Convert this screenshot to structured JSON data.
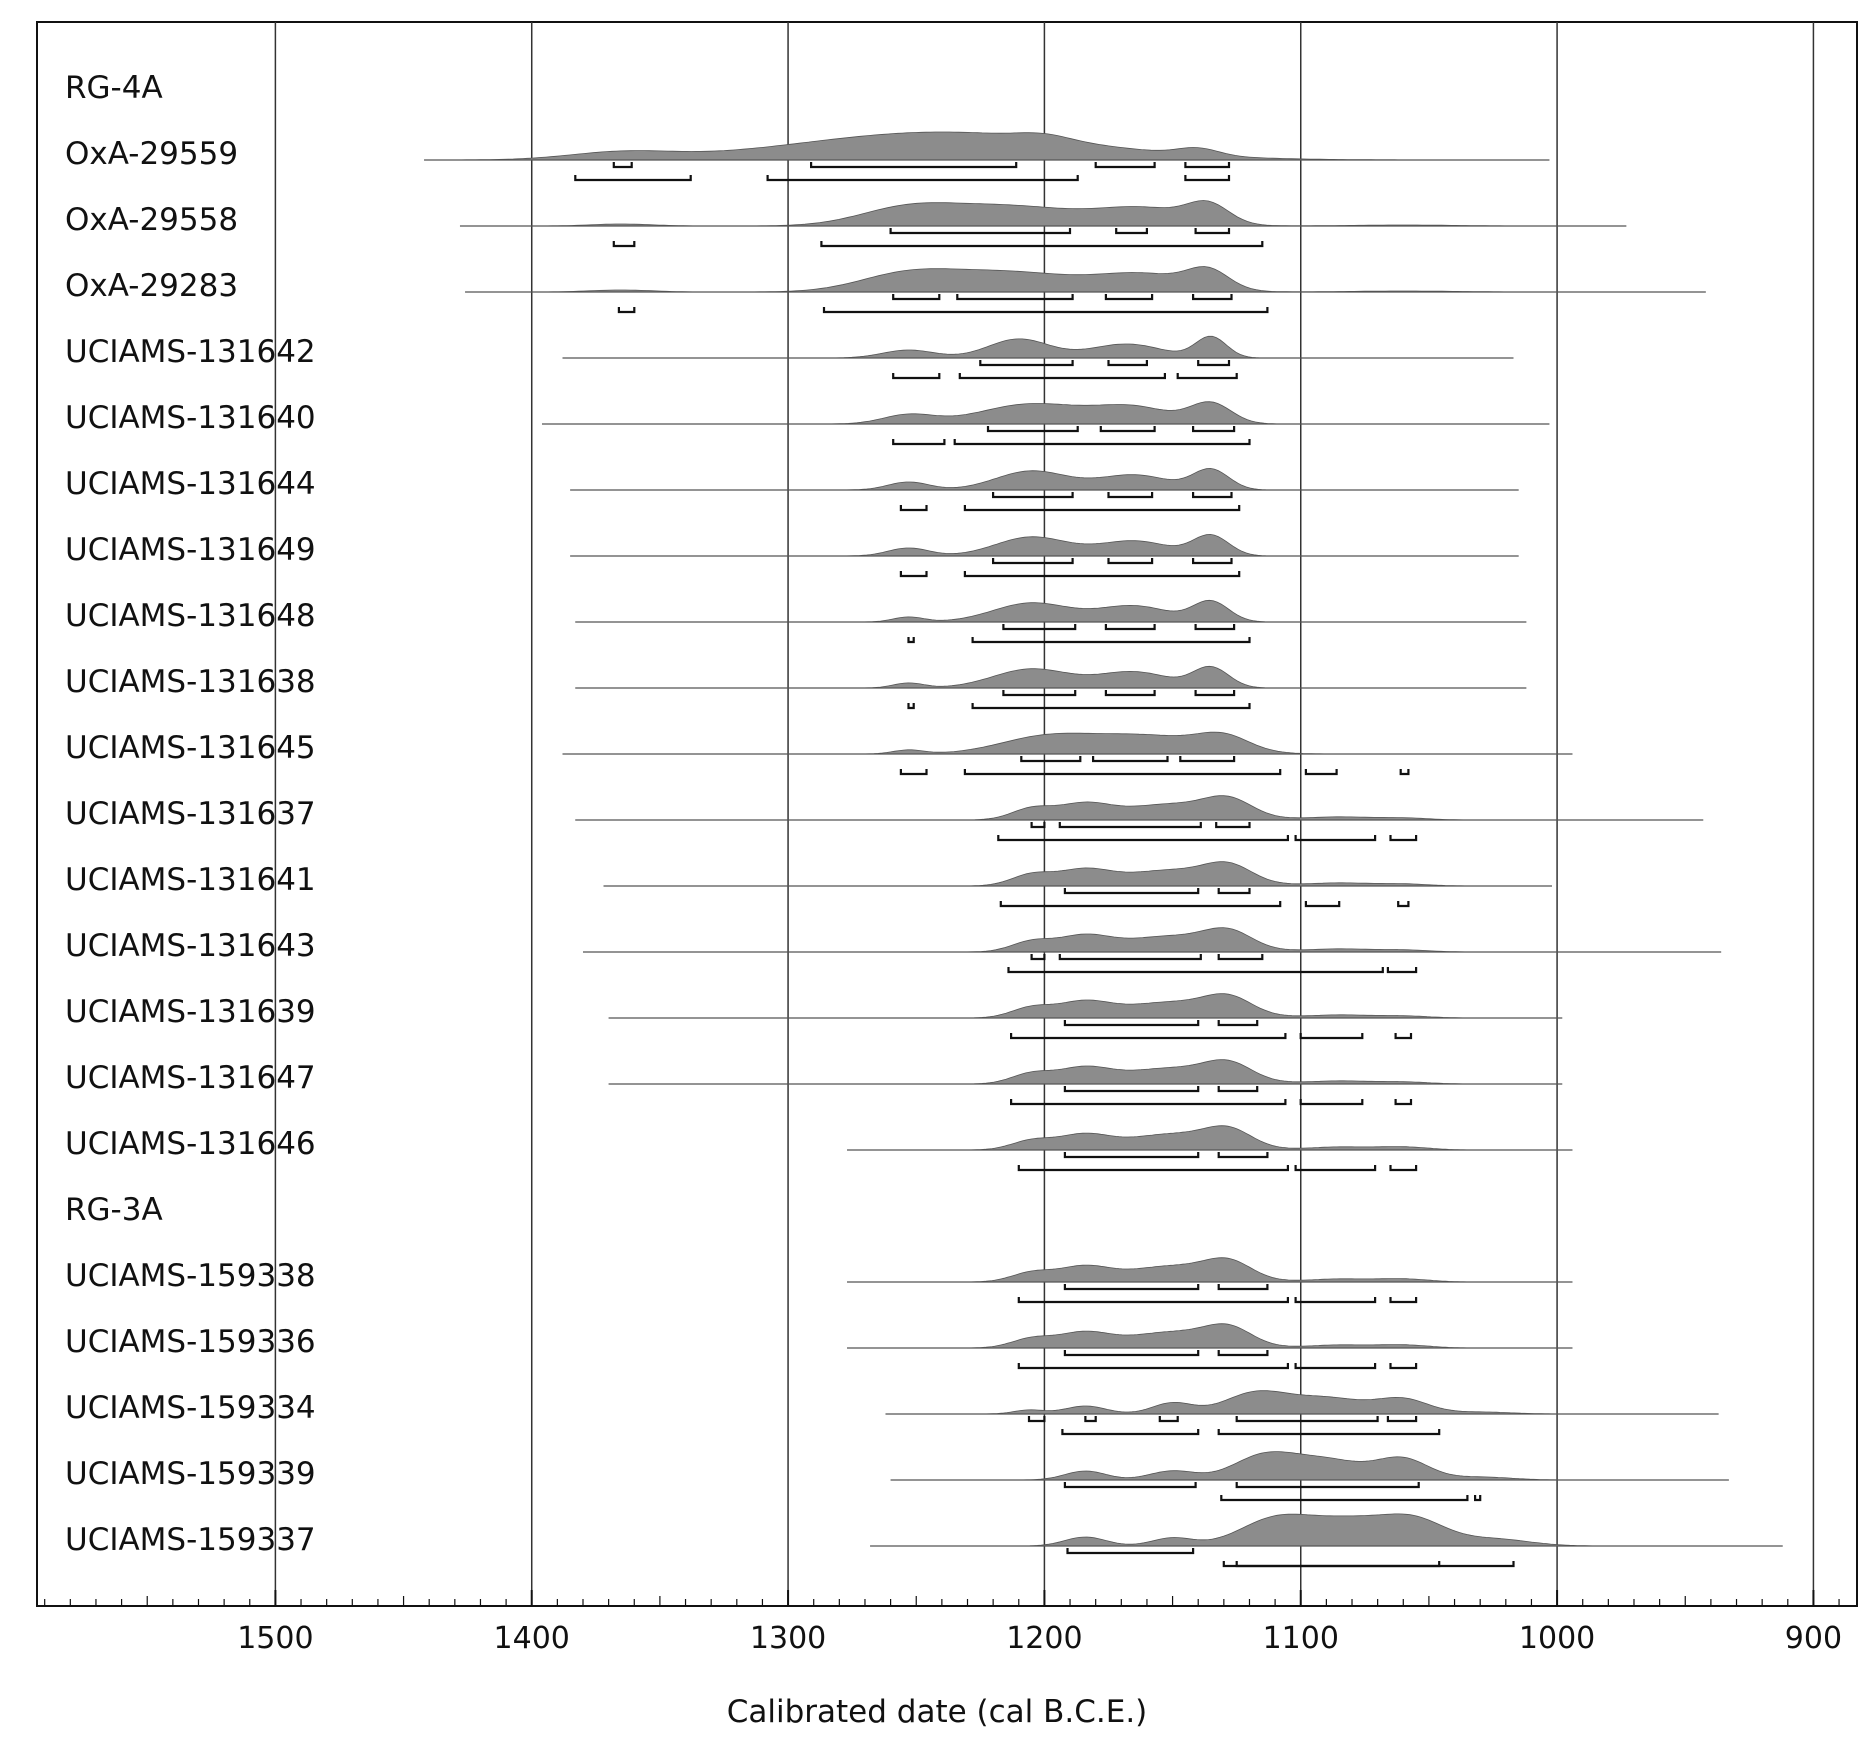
{
  "chart_data": {
    "type": "oxcal-multiplot",
    "xlabel": "Calibrated date (cal B.C.E.)",
    "xlim": [
      1593,
      883
    ],
    "xticks": [
      1500,
      1400,
      1300,
      1200,
      1100,
      1000,
      900
    ],
    "grid": true,
    "rows": [
      {
        "kind": "group",
        "label": "RG-4A"
      },
      {
        "kind": "sample",
        "label": "OxA-29559",
        "line": [
          1442,
          1003
        ],
        "peaks": [
          [
            1365,
            7,
            20
          ],
          [
            1240,
            28,
            55
          ],
          [
            1200,
            5,
            10
          ],
          [
            1140,
            7,
            8
          ]
        ],
        "r68": [
          [
            1368,
            1361
          ],
          [
            1291,
            1211
          ],
          [
            1180,
            1157
          ],
          [
            1145,
            1128
          ]
        ],
        "r95": [
          [
            1383,
            1338
          ],
          [
            1308,
            1187
          ],
          [
            1145,
            1128
          ]
        ]
      },
      {
        "kind": "sample",
        "label": "OxA-29558",
        "line": [
          1428,
          973
        ],
        "peaks": [
          [
            1365,
            2,
            12
          ],
          [
            1255,
            14,
            18
          ],
          [
            1215,
            20,
            28
          ],
          [
            1160,
            16,
            18
          ],
          [
            1136,
            18,
            8
          ],
          [
            1060,
            1,
            20
          ]
        ],
        "r68": [
          [
            1260,
            1190
          ],
          [
            1172,
            1160
          ],
          [
            1141,
            1128
          ]
        ],
        "r95": [
          [
            1368,
            1360
          ],
          [
            1287,
            1115
          ]
        ]
      },
      {
        "kind": "sample",
        "label": "OxA-29283",
        "line": [
          1426,
          942
        ],
        "peaks": [
          [
            1365,
            2,
            12
          ],
          [
            1255,
            14,
            18
          ],
          [
            1215,
            20,
            28
          ],
          [
            1160,
            16,
            18
          ],
          [
            1136,
            18,
            8
          ],
          [
            1060,
            1,
            20
          ]
        ],
        "r68": [
          [
            1259,
            1241
          ],
          [
            1234,
            1189
          ],
          [
            1176,
            1158
          ],
          [
            1142,
            1127
          ]
        ],
        "r95": [
          [
            1366,
            1360
          ],
          [
            1286,
            1113
          ]
        ]
      },
      {
        "kind": "sample",
        "label": "UCIAMS-131642",
        "line": [
          1388,
          1017
        ],
        "peaks": [
          [
            1253,
            8,
            10
          ],
          [
            1210,
            19,
            12
          ],
          [
            1168,
            14,
            14
          ],
          [
            1135,
            21,
            6
          ]
        ],
        "r68": [
          [
            1225,
            1189
          ],
          [
            1175,
            1160
          ],
          [
            1140,
            1128
          ]
        ],
        "r95": [
          [
            1259,
            1241
          ],
          [
            1233,
            1153
          ],
          [
            1148,
            1125
          ]
        ]
      },
      {
        "kind": "sample",
        "label": "UCIAMS-131640",
        "line": [
          1396,
          1003
        ],
        "peaks": [
          [
            1253,
            9,
            10
          ],
          [
            1205,
            20,
            20
          ],
          [
            1165,
            16,
            15
          ],
          [
            1135,
            20,
            8
          ]
        ],
        "r68": [
          [
            1222,
            1187
          ],
          [
            1178,
            1157
          ],
          [
            1142,
            1126
          ]
        ],
        "r95": [
          [
            1259,
            1239
          ],
          [
            1235,
            1120
          ]
        ]
      },
      {
        "kind": "sample",
        "label": "UCIAMS-131644",
        "line": [
          1385,
          1015
        ],
        "peaks": [
          [
            1253,
            8,
            8
          ],
          [
            1205,
            19,
            14
          ],
          [
            1165,
            15,
            14
          ],
          [
            1135,
            20,
            7
          ]
        ],
        "r68": [
          [
            1220,
            1189
          ],
          [
            1175,
            1158
          ],
          [
            1142,
            1127
          ]
        ],
        "r95": [
          [
            1256,
            1246
          ],
          [
            1231,
            1124
          ]
        ]
      },
      {
        "kind": "sample",
        "label": "UCIAMS-131649",
        "line": [
          1385,
          1015
        ],
        "peaks": [
          [
            1253,
            8,
            8
          ],
          [
            1205,
            19,
            14
          ],
          [
            1165,
            15,
            14
          ],
          [
            1135,
            20,
            7
          ]
        ],
        "r68": [
          [
            1220,
            1189
          ],
          [
            1175,
            1158
          ],
          [
            1142,
            1127
          ]
        ],
        "r95": [
          [
            1256,
            1246
          ],
          [
            1231,
            1124
          ]
        ]
      },
      {
        "kind": "sample",
        "label": "UCIAMS-131648",
        "line": [
          1383,
          1012
        ],
        "peaks": [
          [
            1253,
            5,
            6
          ],
          [
            1205,
            19,
            15
          ],
          [
            1165,
            16,
            14
          ],
          [
            1135,
            20,
            7
          ]
        ],
        "r68": [
          [
            1216,
            1188
          ],
          [
            1176,
            1157
          ],
          [
            1141,
            1126
          ]
        ],
        "r95": [
          [
            1253,
            1251
          ],
          [
            1228,
            1120
          ]
        ]
      },
      {
        "kind": "sample",
        "label": "UCIAMS-131638",
        "line": [
          1383,
          1012
        ],
        "peaks": [
          [
            1253,
            5,
            6
          ],
          [
            1205,
            19,
            15
          ],
          [
            1165,
            16,
            14
          ],
          [
            1135,
            20,
            7
          ]
        ],
        "r68": [
          [
            1216,
            1188
          ],
          [
            1176,
            1157
          ],
          [
            1141,
            1126
          ]
        ],
        "r95": [
          [
            1253,
            1251
          ],
          [
            1228,
            1120
          ]
        ]
      },
      {
        "kind": "sample",
        "label": "UCIAMS-131645",
        "line": [
          1388,
          994
        ],
        "peaks": [
          [
            1253,
            4,
            6
          ],
          [
            1200,
            16,
            18
          ],
          [
            1160,
            18,
            22
          ],
          [
            1130,
            14,
            10
          ]
        ],
        "r68": [
          [
            1209,
            1186
          ],
          [
            1181,
            1152
          ],
          [
            1147,
            1126
          ]
        ],
        "r95": [
          [
            1256,
            1246
          ],
          [
            1231,
            1108
          ],
          [
            1098,
            1086
          ],
          [
            1061,
            1058
          ]
        ]
      },
      {
        "kind": "sample",
        "label": "UCIAMS-131637",
        "line": [
          1383,
          943
        ],
        "peaks": [
          [
            1205,
            11,
            8
          ],
          [
            1185,
            14,
            10
          ],
          [
            1150,
            16,
            20
          ],
          [
            1128,
            15,
            9
          ],
          [
            1085,
            3,
            12
          ],
          [
            1060,
            2,
            10
          ]
        ],
        "r68": [
          [
            1205,
            1200
          ],
          [
            1194,
            1139
          ],
          [
            1133,
            1120
          ]
        ],
        "r95": [
          [
            1218,
            1105
          ],
          [
            1102,
            1071
          ],
          [
            1065,
            1055
          ]
        ]
      },
      {
        "kind": "sample",
        "label": "UCIAMS-131641",
        "line": [
          1372,
          1002
        ],
        "peaks": [
          [
            1205,
            11,
            8
          ],
          [
            1185,
            14,
            10
          ],
          [
            1150,
            16,
            20
          ],
          [
            1128,
            15,
            9
          ],
          [
            1085,
            3,
            12
          ],
          [
            1060,
            2,
            10
          ]
        ],
        "r68": [
          [
            1192,
            1140
          ],
          [
            1132,
            1120
          ]
        ],
        "r95": [
          [
            1217,
            1108
          ],
          [
            1098,
            1085
          ],
          [
            1062,
            1058
          ]
        ]
      },
      {
        "kind": "sample",
        "label": "UCIAMS-131643",
        "line": [
          1380,
          936
        ],
        "peaks": [
          [
            1205,
            10,
            8
          ],
          [
            1185,
            14,
            10
          ],
          [
            1150,
            16,
            20
          ],
          [
            1128,
            15,
            9
          ],
          [
            1085,
            3,
            12
          ],
          [
            1060,
            2,
            10
          ]
        ],
        "r68": [
          [
            1205,
            1200
          ],
          [
            1194,
            1139
          ],
          [
            1132,
            1115
          ]
        ],
        "r95": [
          [
            1214,
            1068
          ],
          [
            1066,
            1055
          ]
        ]
      },
      {
        "kind": "sample",
        "label": "UCIAMS-131639",
        "line": [
          1370,
          998
        ],
        "peaks": [
          [
            1205,
            10,
            8
          ],
          [
            1185,
            14,
            10
          ],
          [
            1150,
            16,
            20
          ],
          [
            1128,
            15,
            9
          ],
          [
            1085,
            3,
            12
          ],
          [
            1060,
            2,
            10
          ]
        ],
        "r68": [
          [
            1192,
            1140
          ],
          [
            1132,
            1117
          ]
        ],
        "r95": [
          [
            1213,
            1106
          ],
          [
            1100,
            1076
          ],
          [
            1063,
            1057
          ]
        ]
      },
      {
        "kind": "sample",
        "label": "UCIAMS-131647",
        "line": [
          1370,
          998
        ],
        "peaks": [
          [
            1205,
            10,
            8
          ],
          [
            1185,
            14,
            10
          ],
          [
            1150,
            16,
            20
          ],
          [
            1128,
            15,
            9
          ],
          [
            1085,
            3,
            12
          ],
          [
            1060,
            2,
            10
          ]
        ],
        "r68": [
          [
            1192,
            1140
          ],
          [
            1132,
            1117
          ]
        ],
        "r95": [
          [
            1213,
            1106
          ],
          [
            1100,
            1076
          ],
          [
            1063,
            1057
          ]
        ]
      },
      {
        "kind": "sample",
        "label": "UCIAMS-131646",
        "line": [
          1277,
          994
        ],
        "peaks": [
          [
            1205,
            9,
            8
          ],
          [
            1185,
            14,
            10
          ],
          [
            1150,
            16,
            18
          ],
          [
            1128,
            16,
            9
          ],
          [
            1085,
            3,
            12
          ],
          [
            1060,
            3,
            10
          ]
        ],
        "r68": [
          [
            1192,
            1140
          ],
          [
            1132,
            1113
          ]
        ],
        "r95": [
          [
            1210,
            1105
          ],
          [
            1102,
            1071
          ],
          [
            1065,
            1055
          ]
        ]
      },
      {
        "kind": "group",
        "label": "RG-3A"
      },
      {
        "kind": "sample",
        "label": "UCIAMS-159338",
        "line": [
          1277,
          994
        ],
        "peaks": [
          [
            1205,
            9,
            8
          ],
          [
            1185,
            14,
            10
          ],
          [
            1150,
            16,
            18
          ],
          [
            1128,
            16,
            9
          ],
          [
            1085,
            3,
            12
          ],
          [
            1060,
            3,
            10
          ]
        ],
        "r68": [
          [
            1192,
            1140
          ],
          [
            1132,
            1113
          ]
        ],
        "r95": [
          [
            1210,
            1105
          ],
          [
            1102,
            1071
          ],
          [
            1065,
            1055
          ]
        ]
      },
      {
        "kind": "sample",
        "label": "UCIAMS-159336",
        "line": [
          1277,
          994
        ],
        "peaks": [
          [
            1205,
            9,
            8
          ],
          [
            1185,
            14,
            10
          ],
          [
            1150,
            16,
            18
          ],
          [
            1128,
            16,
            9
          ],
          [
            1085,
            3,
            12
          ],
          [
            1060,
            3,
            10
          ]
        ],
        "r68": [
          [
            1192,
            1140
          ],
          [
            1132,
            1113
          ]
        ],
        "r95": [
          [
            1210,
            1105
          ],
          [
            1102,
            1071
          ],
          [
            1065,
            1055
          ]
        ]
      },
      {
        "kind": "sample",
        "label": "UCIAMS-159334",
        "line": [
          1262,
          937
        ],
        "peaks": [
          [
            1206,
            4,
            6
          ],
          [
            1184,
            8,
            8
          ],
          [
            1150,
            11,
            8
          ],
          [
            1118,
            20,
            12
          ],
          [
            1090,
            16,
            15
          ],
          [
            1060,
            14,
            10
          ],
          [
            1030,
            2,
            12
          ]
        ],
        "r68": [
          [
            1206,
            1200
          ],
          [
            1184,
            1180
          ],
          [
            1155,
            1148
          ],
          [
            1125,
            1070
          ],
          [
            1066,
            1055
          ]
        ],
        "r95": [
          [
            1193,
            1140
          ],
          [
            1132,
            1046
          ]
        ]
      },
      {
        "kind": "sample",
        "label": "UCIAMS-159339",
        "line": [
          1260,
          933
        ],
        "peaks": [
          [
            1184,
            9,
            8
          ],
          [
            1150,
            9,
            9
          ],
          [
            1115,
            22,
            12
          ],
          [
            1090,
            20,
            15
          ],
          [
            1060,
            20,
            10
          ],
          [
            1030,
            3,
            12
          ]
        ],
        "r68": [
          [
            1192,
            1141
          ],
          [
            1125,
            1054
          ]
        ],
        "r95": [
          [
            1131,
            1035
          ],
          [
            1032,
            1030
          ]
        ]
      },
      {
        "kind": "sample",
        "label": "UCIAMS-159337",
        "line": [
          1268,
          912
        ],
        "peaks": [
          [
            1184,
            9,
            8
          ],
          [
            1150,
            8,
            8
          ],
          [
            1110,
            26,
            14
          ],
          [
            1080,
            25,
            16
          ],
          [
            1055,
            22,
            12
          ],
          [
            1025,
            7,
            14
          ]
        ],
        "r68": [
          [
            1191,
            1142
          ]
        ],
        "r95": [
          [
            1130,
            1017
          ],
          [
            1125,
            1046
          ]
        ]
      }
    ]
  }
}
